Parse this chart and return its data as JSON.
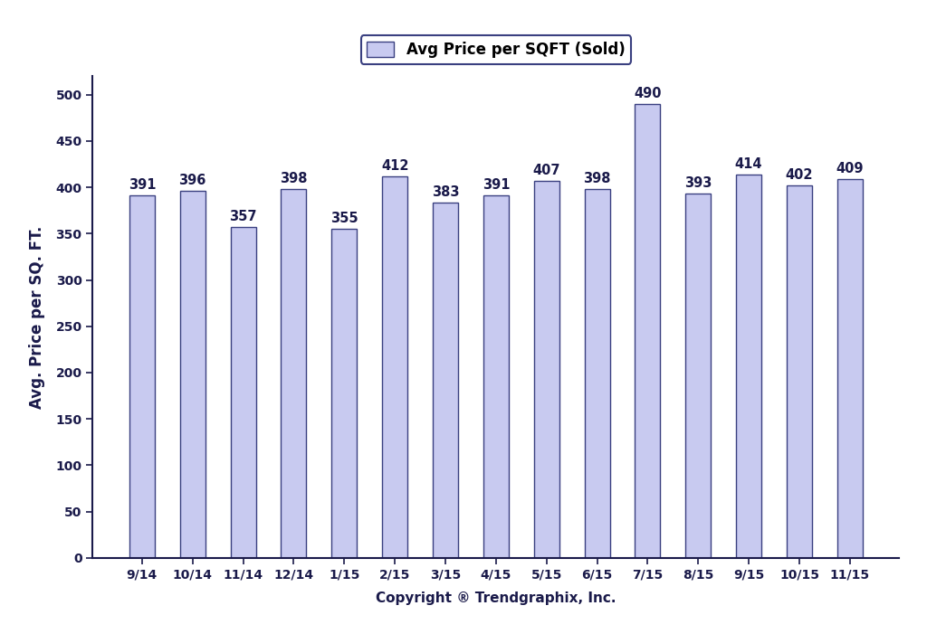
{
  "categories": [
    "9/14",
    "10/14",
    "11/14",
    "12/14",
    "1/15",
    "2/15",
    "3/15",
    "4/15",
    "5/15",
    "6/15",
    "7/15",
    "8/15",
    "9/15",
    "10/15",
    "11/15"
  ],
  "values": [
    391,
    396,
    357,
    398,
    355,
    412,
    383,
    391,
    407,
    398,
    490,
    393,
    414,
    402,
    409
  ],
  "bar_color": "#c8caf0",
  "bar_edge_color": "#3a4080",
  "ylabel": "Avg. Price per SQ. FT.",
  "xlabel": "Copyright ® Trendgraphix, Inc.",
  "ylim": [
    0,
    520
  ],
  "yticks": [
    0,
    50,
    100,
    150,
    200,
    250,
    300,
    350,
    400,
    450,
    500
  ],
  "legend_label": "Avg Price per SQFT (Sold)",
  "legend_box_color": "#c8caf0",
  "legend_box_edge_color": "#3a4080",
  "background_color": "#ffffff",
  "bar_label_fontsize": 10.5,
  "axis_label_fontsize": 12,
  "tick_fontsize": 10,
  "xlabel_fontsize": 11,
  "bar_width": 0.5
}
